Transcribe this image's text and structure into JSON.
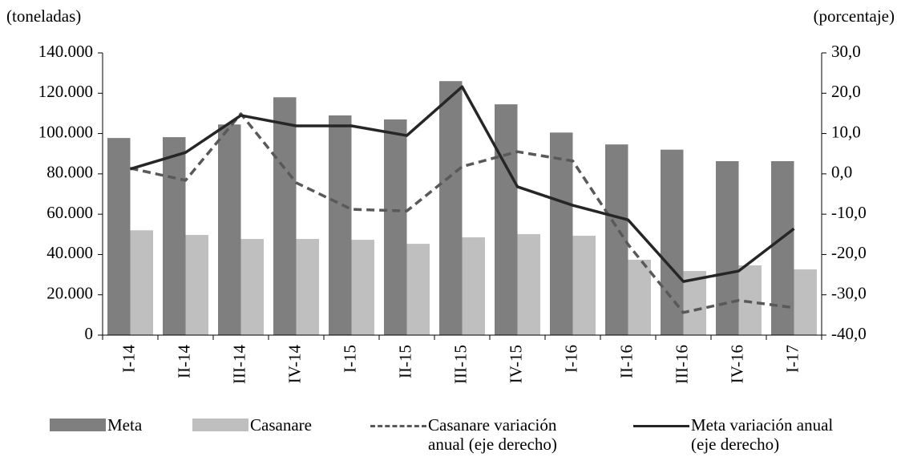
{
  "chart_data": {
    "type": "bar-line",
    "y_label": "(toneladas)",
    "y2_label": "(porcentaje)",
    "categories": [
      "I-14",
      "II-14",
      "III-14",
      "IV-14",
      "I-15",
      "II-15",
      "III-15",
      "IV-15",
      "I-16",
      "II-16",
      "III-16",
      "IV-16",
      "I-17"
    ],
    "series": [
      {
        "name": "Meta",
        "type": "bar",
        "color": "#7f7f7f",
        "values": [
          97800,
          98200,
          104500,
          118000,
          109000,
          107000,
          126000,
          114500,
          100500,
          94600,
          92000,
          86300,
          86300
        ]
      },
      {
        "name": "Casanare",
        "type": "bar",
        "color": "#bfbfbf",
        "values": [
          52000,
          49700,
          47700,
          47700,
          47300,
          45300,
          48500,
          50100,
          49300,
          37400,
          31800,
          34600,
          32600
        ]
      },
      {
        "name": "Casanare variación anual (eje derecho)",
        "type": "line",
        "dashed": true,
        "axis": "y2",
        "color": "#595959",
        "values": [
          1.4,
          -1.6,
          14.9,
          -2.2,
          -8.8,
          -9.2,
          1.8,
          5.5,
          3.2,
          -17.5,
          -34.4,
          -31.4,
          -33.2
        ]
      },
      {
        "name": "Meta variación anual (eje derecho)",
        "type": "line",
        "dashed": false,
        "axis": "y2",
        "color": "#262626",
        "values": [
          1.2,
          5.3,
          14.5,
          11.9,
          11.9,
          9.5,
          21.6,
          -3.2,
          -7.8,
          -11.4,
          -26.7,
          -24.1,
          -13.6
        ]
      }
    ],
    "ylim": [
      0,
      140000
    ],
    "yticks": [
      0,
      {
        "value": 20000,
        "label": "20.000"
      },
      {
        "value": 40000,
        "label": "40.000"
      },
      {
        "value": 60000,
        "label": "60.000"
      },
      {
        "value": 80000,
        "label": "80.000"
      },
      {
        "value": 100000,
        "label": "100.000"
      },
      {
        "value": 120000,
        "label": "120.000"
      },
      {
        "value": 140000,
        "label": "140.000"
      }
    ],
    "y2lim": [
      -40,
      30
    ],
    "y2ticks": [
      {
        "value": -40,
        "label": "-40,0"
      },
      {
        "value": -30,
        "label": "-30,0"
      },
      {
        "value": -20,
        "label": "-20,0"
      },
      {
        "value": -10,
        "label": "-10,0"
      },
      {
        "value": 0,
        "label": "0,0"
      },
      {
        "value": 10,
        "label": "10,0"
      },
      {
        "value": 20,
        "label": "20,0"
      },
      {
        "value": 30,
        "label": "30,0"
      }
    ],
    "grid": false
  }
}
